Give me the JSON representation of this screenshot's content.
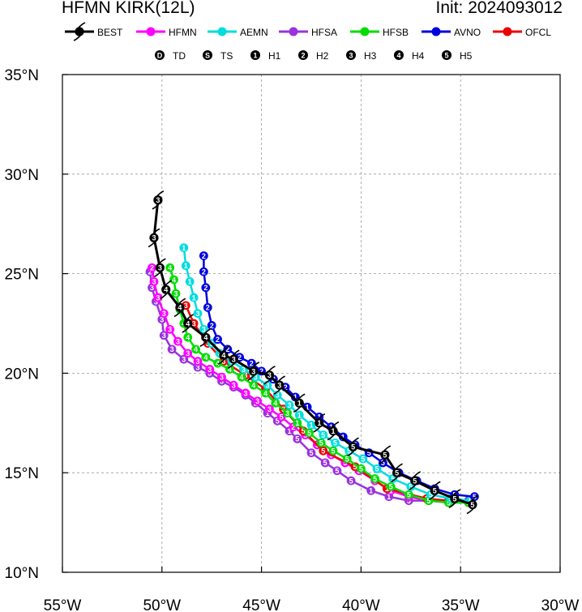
{
  "header": {
    "title_left": "HFMN KIRK(12L)",
    "title_right": "Init: 2024093012"
  },
  "legend_models": [
    {
      "label": "BEST",
      "color": "#000000",
      "icon": "hurricane-symbol-icon"
    },
    {
      "label": "HFMN",
      "color": "#ff00ff"
    },
    {
      "label": "AEMN",
      "color": "#00dddd"
    },
    {
      "label": "HFSA",
      "color": "#9933dd"
    },
    {
      "label": "HFSB",
      "color": "#00dd00"
    },
    {
      "label": "AVNO",
      "color": "#0000dd"
    },
    {
      "label": "OFCL",
      "color": "#ee0000"
    }
  ],
  "legend_intensity": [
    {
      "symbol": "D",
      "label": "TD"
    },
    {
      "symbol": "S",
      "label": "TS"
    },
    {
      "symbol": "1",
      "label": "H1"
    },
    {
      "symbol": "2",
      "label": "H2"
    },
    {
      "symbol": "3",
      "label": "H3"
    },
    {
      "symbol": "4",
      "label": "H4"
    },
    {
      "symbol": "5",
      "label": "H5"
    }
  ],
  "chart_data": {
    "type": "scatter",
    "subtype": "map-track",
    "x_unit": "longitude (degrees, negative = West)",
    "y_unit": "latitude (degrees North)",
    "xlim": [
      -55,
      -30
    ],
    "ylim": [
      10,
      35
    ],
    "x_ticks": [
      -55,
      -50,
      -45,
      -40,
      -35,
      -30
    ],
    "x_tick_labels": [
      "55°W",
      "50°W",
      "45°W",
      "40°W",
      "35°W",
      "30°W"
    ],
    "y_ticks": [
      10,
      15,
      20,
      25,
      30,
      35
    ],
    "y_tick_labels": [
      "10°N",
      "15°N",
      "20°N",
      "25°N",
      "30°N",
      "35°N"
    ],
    "grid": true,
    "series": [
      {
        "name": "HFSA",
        "color": "#9933dd",
        "points": [
          [
            -34.6,
            13.6,
            "5"
          ],
          [
            -35.6,
            13.6,
            "5"
          ],
          [
            -36.6,
            13.6,
            "5"
          ],
          [
            -37.6,
            13.6,
            "5"
          ],
          [
            -38.6,
            13.8,
            "1"
          ],
          [
            -39.5,
            14.1,
            "1"
          ],
          [
            -40.5,
            14.6,
            "5"
          ],
          [
            -41.2,
            15.1,
            "5"
          ],
          [
            -41.8,
            15.5,
            "5"
          ],
          [
            -42.5,
            16.0,
            "5"
          ],
          [
            -43.2,
            16.7,
            "5"
          ],
          [
            -43.6,
            17.1,
            "1"
          ],
          [
            -44.2,
            17.6,
            "5"
          ],
          [
            -44.7,
            18.0,
            "1"
          ],
          [
            -45.3,
            18.5,
            "2"
          ],
          [
            -45.8,
            18.9,
            "3"
          ],
          [
            -46.4,
            19.3,
            "3"
          ],
          [
            -47.0,
            19.6,
            "3"
          ],
          [
            -47.6,
            20.0,
            "3"
          ],
          [
            -48.2,
            20.3,
            "3"
          ],
          [
            -48.9,
            20.7,
            "3"
          ],
          [
            -49.5,
            21.2,
            "3"
          ],
          [
            -49.9,
            21.9,
            "3"
          ],
          [
            -50.0,
            22.7,
            "3"
          ],
          [
            -50.3,
            23.6,
            "3"
          ],
          [
            -50.5,
            24.3,
            "3"
          ],
          [
            -50.6,
            25.1,
            "2"
          ]
        ]
      },
      {
        "name": "HFMN",
        "color": "#ff00ff",
        "points": [
          [
            -34.6,
            13.5,
            "5"
          ],
          [
            -35.6,
            13.5,
            "5"
          ],
          [
            -36.6,
            13.6,
            "5"
          ],
          [
            -37.6,
            13.8,
            "5"
          ],
          [
            -38.5,
            14.1,
            "1"
          ],
          [
            -39.3,
            14.6,
            "5"
          ],
          [
            -40.1,
            15.1,
            "5"
          ],
          [
            -40.8,
            15.5,
            "5"
          ],
          [
            -41.5,
            15.9,
            "5"
          ],
          [
            -42.2,
            16.4,
            "5"
          ],
          [
            -42.8,
            16.9,
            "5"
          ],
          [
            -43.4,
            17.3,
            "2"
          ],
          [
            -44.0,
            17.8,
            "5"
          ],
          [
            -44.6,
            18.2,
            "3"
          ],
          [
            -45.2,
            18.6,
            "3"
          ],
          [
            -45.8,
            19.0,
            "3"
          ],
          [
            -46.4,
            19.4,
            "3"
          ],
          [
            -47.0,
            19.8,
            "3"
          ],
          [
            -47.6,
            20.2,
            "3"
          ],
          [
            -48.2,
            20.6,
            "3"
          ],
          [
            -48.7,
            21.0,
            "3"
          ],
          [
            -49.2,
            21.6,
            "3"
          ],
          [
            -49.6,
            22.2,
            "3"
          ],
          [
            -49.9,
            23.0,
            "3"
          ],
          [
            -50.2,
            23.8,
            "3"
          ],
          [
            -50.4,
            24.6,
            "3"
          ],
          [
            -50.5,
            25.3,
            "2"
          ]
        ]
      },
      {
        "name": "OFCL",
        "color": "#ee0000",
        "points": [
          [
            -34.6,
            13.5,
            "5"
          ],
          [
            -36.7,
            13.7,
            "5"
          ],
          [
            -38.7,
            14.2,
            "1"
          ],
          [
            -40.3,
            15.3,
            "5"
          ],
          [
            -41.9,
            16.1,
            "5"
          ],
          [
            -42.9,
            17.1,
            "5"
          ],
          [
            -43.9,
            18.2,
            "3"
          ],
          [
            -44.8,
            19.2,
            "3"
          ],
          [
            -45.8,
            19.9,
            "3"
          ],
          [
            -46.9,
            20.6,
            "3"
          ],
          [
            -47.7,
            21.5,
            "3"
          ],
          [
            -48.4,
            22.5,
            "3"
          ],
          [
            -48.8,
            23.4,
            "3"
          ]
        ]
      },
      {
        "name": "HFSB",
        "color": "#00dd00",
        "points": [
          [
            -34.6,
            13.5,
            "5"
          ],
          [
            -35.6,
            13.5,
            "5"
          ],
          [
            -36.6,
            13.6,
            "5"
          ],
          [
            -37.6,
            13.9,
            "5"
          ],
          [
            -38.5,
            14.3,
            "5"
          ],
          [
            -39.3,
            14.7,
            "5"
          ],
          [
            -40.0,
            15.2,
            "5"
          ],
          [
            -40.7,
            15.7,
            "5"
          ],
          [
            -41.4,
            16.1,
            "5"
          ],
          [
            -42.0,
            16.5,
            "5"
          ],
          [
            -42.6,
            17.0,
            "5"
          ],
          [
            -43.2,
            17.5,
            "1"
          ],
          [
            -43.7,
            18.0,
            "3"
          ],
          [
            -44.3,
            18.5,
            "4"
          ],
          [
            -44.8,
            19.0,
            "4"
          ],
          [
            -45.4,
            19.4,
            "4"
          ],
          [
            -46.0,
            19.8,
            "4"
          ],
          [
            -46.6,
            20.2,
            "4"
          ],
          [
            -47.2,
            20.5,
            "4"
          ],
          [
            -47.8,
            20.8,
            "4"
          ],
          [
            -48.3,
            21.2,
            "4"
          ],
          [
            -48.7,
            21.8,
            "4"
          ],
          [
            -48.9,
            22.5,
            "4"
          ],
          [
            -49.1,
            23.2,
            "4"
          ],
          [
            -49.3,
            24.0,
            "3"
          ],
          [
            -49.4,
            24.7,
            "4"
          ],
          [
            -49.6,
            25.3,
            "4"
          ]
        ]
      },
      {
        "name": "AEMN",
        "color": "#00dddd",
        "points": [
          [
            -34.5,
            13.6,
            "5"
          ],
          [
            -35.5,
            13.7,
            "5"
          ],
          [
            -36.5,
            13.9,
            "5"
          ],
          [
            -37.5,
            14.3,
            "5"
          ],
          [
            -38.4,
            14.7,
            "5"
          ],
          [
            -39.2,
            15.2,
            "5"
          ],
          [
            -39.9,
            15.7,
            "5"
          ],
          [
            -40.6,
            16.1,
            "5"
          ],
          [
            -41.3,
            16.5,
            "5"
          ],
          [
            -41.9,
            16.9,
            "5"
          ],
          [
            -42.5,
            17.4,
            "1"
          ],
          [
            -43.1,
            17.9,
            "1"
          ],
          [
            -43.6,
            18.4,
            "3"
          ],
          [
            -44.2,
            18.9,
            "3"
          ],
          [
            -44.7,
            19.4,
            "3"
          ],
          [
            -45.3,
            19.8,
            "3"
          ],
          [
            -45.9,
            20.2,
            "3"
          ],
          [
            -46.5,
            20.6,
            "3"
          ],
          [
            -47.1,
            21.0,
            "3"
          ],
          [
            -47.5,
            21.5,
            "3"
          ],
          [
            -47.9,
            22.2,
            "3"
          ],
          [
            -48.2,
            23.0,
            "3"
          ],
          [
            -48.4,
            23.8,
            "1"
          ],
          [
            -48.6,
            24.6,
            "1"
          ],
          [
            -48.8,
            25.4,
            "1"
          ],
          [
            -48.9,
            26.3,
            "1"
          ]
        ]
      },
      {
        "name": "AVNO",
        "color": "#0000dd",
        "points": [
          [
            -34.3,
            13.8,
            "5"
          ],
          [
            -35.3,
            13.9,
            "5"
          ],
          [
            -36.3,
            14.2,
            "5"
          ],
          [
            -37.2,
            14.6,
            "5"
          ],
          [
            -38.1,
            15.0,
            "5"
          ],
          [
            -38.9,
            15.5,
            "5"
          ],
          [
            -39.6,
            16.0,
            "5"
          ],
          [
            -40.3,
            16.4,
            "5"
          ],
          [
            -40.9,
            16.8,
            "1"
          ],
          [
            -41.5,
            17.3,
            "1"
          ],
          [
            -42.1,
            17.8,
            "1"
          ],
          [
            -42.7,
            18.3,
            "1"
          ],
          [
            -43.3,
            18.8,
            "1"
          ],
          [
            -43.8,
            19.3,
            "2"
          ],
          [
            -44.4,
            19.7,
            "2"
          ],
          [
            -45.0,
            20.1,
            "2"
          ],
          [
            -45.5,
            20.5,
            "2"
          ],
          [
            -46.1,
            20.8,
            "2"
          ],
          [
            -46.7,
            21.2,
            "2"
          ],
          [
            -47.2,
            21.7,
            "2"
          ],
          [
            -47.5,
            22.4,
            "2"
          ],
          [
            -47.7,
            23.3,
            "2"
          ],
          [
            -47.8,
            24.3,
            "2"
          ],
          [
            -47.9,
            25.1,
            "2"
          ],
          [
            -47.9,
            25.9,
            "2"
          ]
        ]
      },
      {
        "name": "BEST",
        "color": "#000000",
        "points": [
          [
            -34.4,
            13.4,
            "5"
          ],
          [
            -35.3,
            13.7,
            "5"
          ],
          [
            -36.3,
            14.1,
            "5"
          ],
          [
            -37.3,
            14.6,
            "5"
          ],
          [
            -38.2,
            15.0,
            "5"
          ],
          [
            -38.8,
            15.9,
            "5"
          ],
          [
            -40.4,
            16.3,
            "5"
          ],
          [
            -41.4,
            17.1,
            "1"
          ],
          [
            -42.1,
            17.5,
            "1"
          ],
          [
            -43.1,
            18.5,
            "1"
          ],
          [
            -44.1,
            19.4,
            "3"
          ],
          [
            -44.6,
            19.9,
            "3"
          ],
          [
            -45.4,
            20.1,
            "3"
          ],
          [
            -46.4,
            20.7,
            "3"
          ],
          [
            -46.9,
            20.9,
            "4"
          ],
          [
            -47.8,
            21.8,
            "4"
          ],
          [
            -48.7,
            22.5,
            "4"
          ],
          [
            -49.1,
            23.3,
            "4"
          ],
          [
            -49.8,
            24.2,
            "4"
          ],
          [
            -50.1,
            25.3,
            "3"
          ],
          [
            -50.4,
            26.8,
            "3"
          ],
          [
            -50.2,
            28.7,
            "3"
          ]
        ]
      }
    ]
  }
}
